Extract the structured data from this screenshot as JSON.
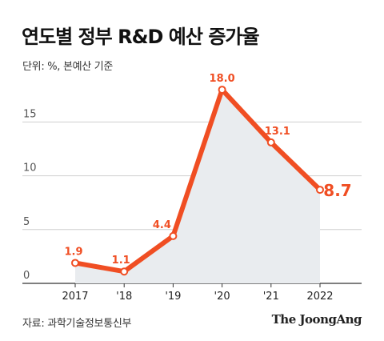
{
  "page": {
    "title": "연도별 정부 R&D 예산 증가율",
    "unit_note": "단위: %, 본예산 기준",
    "source": "자료: 과학기술정보통신부",
    "brand": "The JoongAng"
  },
  "chart_data": {
    "type": "area",
    "title": "연도별 정부 R&D 예산 증가율",
    "xlabel": "",
    "ylabel": "",
    "categories": [
      "2017",
      "'18",
      "'19",
      "'20",
      "'21",
      "2022"
    ],
    "values": [
      1.9,
      1.1,
      4.4,
      18.0,
      13.1,
      8.7
    ],
    "data_labels": [
      "1.9",
      "1.1",
      "4.4",
      "18.0",
      "13.1",
      "8.7"
    ],
    "yticks": [
      0,
      5,
      10,
      15
    ],
    "ylim": [
      0,
      20
    ],
    "grid": true,
    "colors": {
      "line": "#f04e23",
      "area": "#e9ecef",
      "grid": "#cfcfcf",
      "marker_fill": "#ffffff"
    }
  }
}
